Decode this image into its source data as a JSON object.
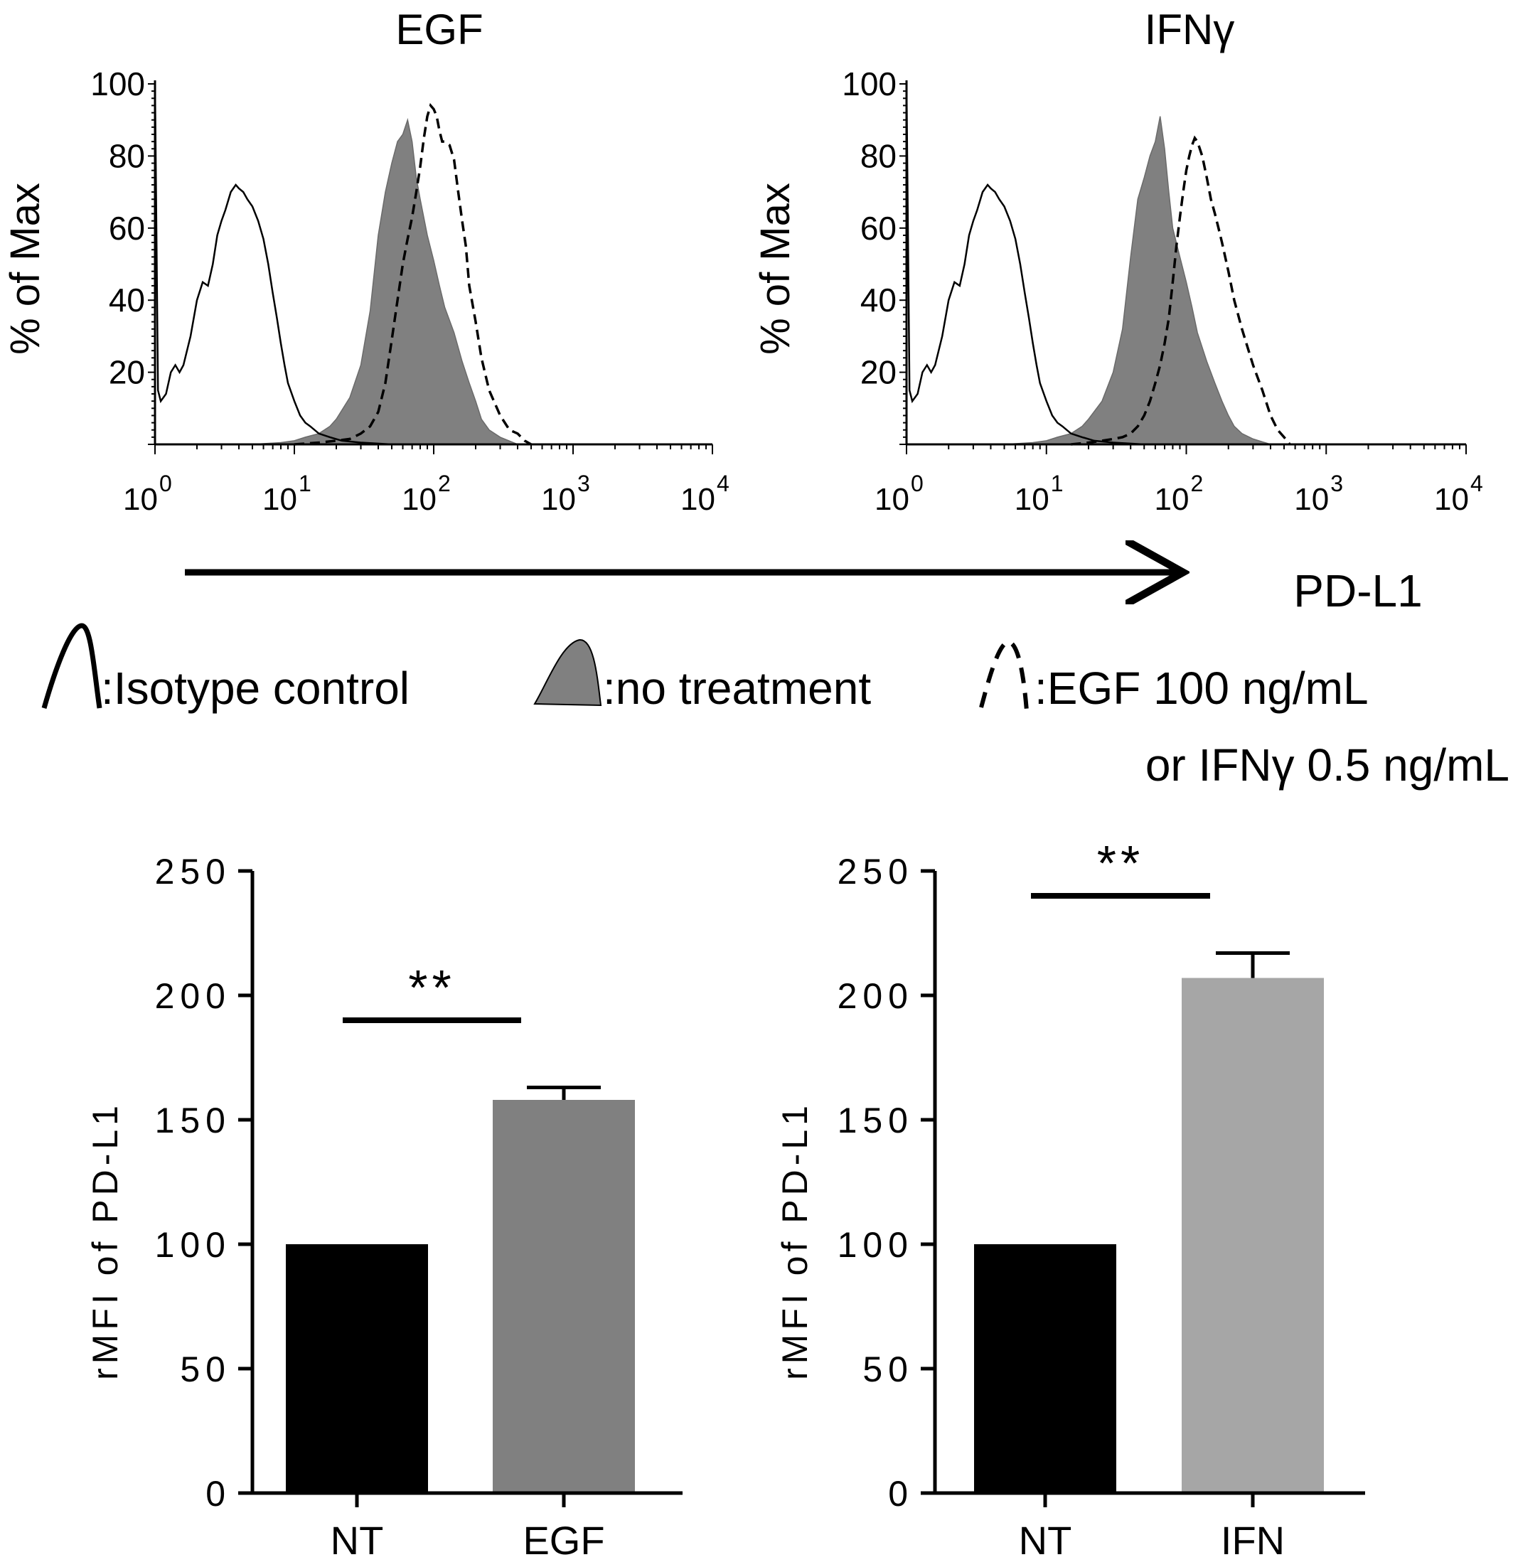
{
  "chart_data": [
    {
      "type": "area",
      "title": "EGF",
      "xlabel": "PD-L1",
      "ylabel": "% of Max",
      "xscale": "log",
      "xlim": [
        1,
        10000
      ],
      "ylim": [
        0,
        100
      ],
      "xticks": [
        {
          "base": "10",
          "exp": "0",
          "value": 1
        },
        {
          "base": "10",
          "exp": "1",
          "value": 10
        },
        {
          "base": "10",
          "exp": "2",
          "value": 100
        },
        {
          "base": "10",
          "exp": "3",
          "value": 1000
        },
        {
          "base": "10",
          "exp": "4",
          "value": 10000
        }
      ],
      "yticks": [
        "20",
        "40",
        "60",
        "80",
        "100"
      ],
      "series": [
        {
          "name": "Isotype control",
          "style": "solid",
          "x": [
            1.0,
            1.05,
            1.1,
            1.2,
            1.3,
            1.4,
            1.5,
            1.6,
            1.8,
            2.0,
            2.2,
            2.4,
            2.6,
            2.8,
            3.0,
            3.2,
            3.5,
            3.8,
            4.0,
            4.3,
            4.6,
            5.0,
            5.5,
            6.0,
            6.5,
            7.0,
            7.5,
            8.0,
            8.5,
            9.0,
            10,
            11,
            12,
            13,
            15,
            18,
            22,
            30,
            50,
            100,
            300
          ],
          "y": [
            100,
            15,
            12,
            14,
            20,
            22,
            20,
            22,
            30,
            40,
            45,
            44,
            50,
            58,
            62,
            65,
            70,
            72,
            71,
            70,
            68,
            66,
            62,
            57,
            50,
            42,
            35,
            28,
            22,
            17,
            12,
            8,
            6,
            5,
            3,
            2,
            1,
            0.5,
            0,
            0,
            0
          ]
        },
        {
          "name": "no treatment",
          "style": "filled",
          "x": [
            5,
            8,
            10,
            12,
            15,
            18,
            20,
            25,
            30,
            35,
            40,
            45,
            50,
            55,
            60,
            65,
            70,
            75,
            80,
            90,
            100,
            110,
            120,
            140,
            160,
            180,
            200,
            220,
            250,
            300,
            400
          ],
          "y": [
            0,
            0.5,
            1,
            2,
            3,
            5,
            7,
            13,
            22,
            37,
            58,
            70,
            78,
            84,
            86,
            90,
            84,
            74,
            68,
            58,
            51,
            44,
            38,
            31,
            23,
            17,
            12,
            7,
            4,
            2,
            0
          ]
        },
        {
          "name": "EGF 100 ng/mL",
          "style": "dashed",
          "x": [
            10,
            15,
            20,
            25,
            30,
            35,
            40,
            45,
            50,
            55,
            60,
            65,
            70,
            75,
            80,
            85,
            90,
            95,
            100,
            105,
            110,
            115,
            120,
            130,
            140,
            150,
            160,
            170,
            180,
            200,
            220,
            250,
            300,
            350,
            400,
            450,
            500
          ],
          "y": [
            0,
            0.5,
            1,
            1.5,
            3,
            5,
            9,
            17,
            29,
            40,
            50,
            57,
            63,
            70,
            77,
            85,
            91,
            94,
            93,
            91,
            87,
            84,
            84,
            83,
            79,
            70,
            62,
            55,
            44,
            34,
            24,
            15,
            8,
            4,
            3,
            1,
            0
          ]
        }
      ]
    },
    {
      "type": "area",
      "title": "IFNγ",
      "xlabel": "",
      "ylabel": "% of Max",
      "xscale": "log",
      "xlim": [
        1,
        10000
      ],
      "ylim": [
        0,
        100
      ],
      "xticks": [
        {
          "base": "10",
          "exp": "0",
          "value": 1
        },
        {
          "base": "10",
          "exp": "1",
          "value": 10
        },
        {
          "base": "10",
          "exp": "2",
          "value": 100
        },
        {
          "base": "10",
          "exp": "3",
          "value": 1000
        },
        {
          "base": "10",
          "exp": "4",
          "value": 10000
        }
      ],
      "yticks": [
        "20",
        "40",
        "60",
        "80",
        "100"
      ],
      "series": [
        {
          "name": "Isotype control",
          "style": "solid",
          "x": [
            1.0,
            1.05,
            1.1,
            1.2,
            1.3,
            1.4,
            1.5,
            1.6,
            1.8,
            2.0,
            2.2,
            2.4,
            2.6,
            2.8,
            3.0,
            3.2,
            3.5,
            3.8,
            4.0,
            4.3,
            4.6,
            5.0,
            5.5,
            6.0,
            6.5,
            7.0,
            7.5,
            8.0,
            8.5,
            9.0,
            10,
            11,
            12,
            13,
            15,
            18,
            22,
            30,
            50,
            100,
            300
          ],
          "y": [
            100,
            15,
            12,
            14,
            20,
            22,
            20,
            22,
            30,
            40,
            45,
            44,
            50,
            58,
            62,
            65,
            70,
            72,
            71,
            70,
            68,
            66,
            62,
            57,
            50,
            42,
            35,
            28,
            22,
            17,
            12,
            8,
            6,
            5,
            3,
            2,
            1,
            0.5,
            0,
            0,
            0
          ]
        },
        {
          "name": "no treatment",
          "style": "filled",
          "x": [
            5,
            8,
            10,
            12,
            15,
            18,
            20,
            25,
            30,
            35,
            40,
            45,
            50,
            55,
            60,
            65,
            70,
            75,
            80,
            90,
            100,
            110,
            120,
            140,
            160,
            180,
            200,
            220,
            250,
            300,
            400
          ],
          "y": [
            0,
            0.5,
            1,
            2,
            3,
            5,
            7,
            12,
            20,
            32,
            52,
            68,
            74,
            80,
            84,
            91,
            82,
            70,
            60,
            52,
            45,
            38,
            31,
            23,
            17,
            12,
            8,
            5,
            3,
            1.5,
            0
          ]
        },
        {
          "name": "IFNγ 0.5 ng/mL",
          "style": "dashed",
          "x": [
            15,
            20,
            25,
            30,
            35,
            40,
            45,
            50,
            55,
            60,
            65,
            70,
            75,
            80,
            85,
            90,
            95,
            100,
            105,
            110,
            115,
            120,
            130,
            140,
            150,
            160,
            170,
            180,
            200,
            220,
            250,
            300,
            350,
            400,
            450,
            500,
            550
          ],
          "y": [
            0,
            0.5,
            1,
            1.5,
            2,
            3,
            5,
            8,
            12,
            17,
            22,
            28,
            35,
            45,
            55,
            63,
            70,
            76,
            80,
            83,
            85,
            84,
            80,
            74,
            68,
            64,
            60,
            56,
            48,
            40,
            32,
            22,
            15,
            8,
            4,
            2,
            0
          ]
        }
      ]
    },
    {
      "type": "bar",
      "title": "",
      "ylabel": "rMFI of PD-L1",
      "categories": [
        "NT",
        "EGF"
      ],
      "values": [
        100,
        158
      ],
      "errors": [
        0,
        5
      ],
      "colors": [
        "#000000",
        "#808080"
      ],
      "ylim": [
        0,
        250
      ],
      "yticks": [
        "0",
        "50",
        "100",
        "150",
        "200",
        "250"
      ],
      "significance": {
        "label": "**",
        "from": "NT",
        "to": "EGF",
        "y": 190
      }
    },
    {
      "type": "bar",
      "title": "",
      "ylabel": "rMFI of PD-L1",
      "categories": [
        "NT",
        "IFN"
      ],
      "values": [
        100,
        207
      ],
      "errors": [
        0,
        10
      ],
      "colors": [
        "#000000",
        "#a6a6a6"
      ],
      "ylim": [
        0,
        250
      ],
      "yticks": [
        "0",
        "50",
        "100",
        "150",
        "200",
        "250"
      ],
      "significance": {
        "label": "**",
        "from": "NT",
        "to": "IFN",
        "y": 240
      }
    }
  ],
  "legend": {
    "items": [
      {
        "label": ":Isotype control",
        "style": "solid"
      },
      {
        "label": ":no treatment",
        "style": "filled"
      },
      {
        "label": ":EGF 100 ng/mL",
        "style": "dashed"
      }
    ],
    "line2": "or IFNγ 0.5 ng/mL"
  },
  "colors": {
    "axis": "#000000",
    "fill_no_treatment": "#808080"
  }
}
